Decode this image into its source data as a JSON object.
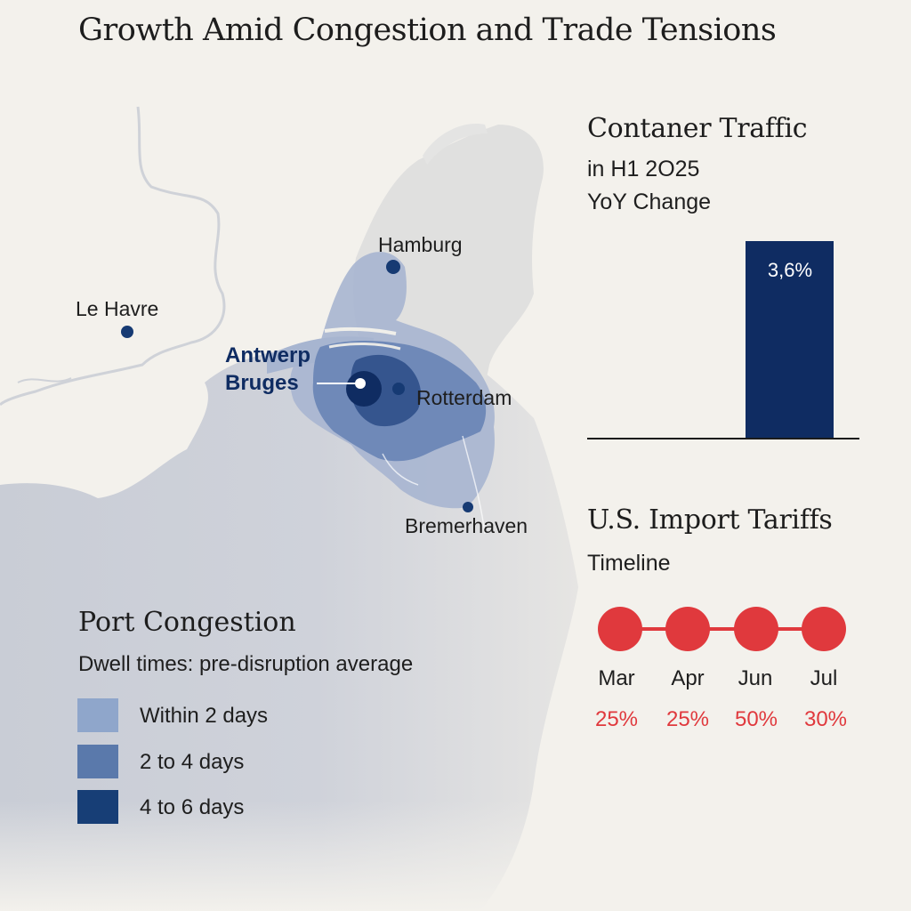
{
  "title": "Growth Amid Congestion and Trade Tensions",
  "cities": {
    "hamburg": "Hamburg",
    "le_havre": "Le Havre",
    "antwerp": "Antwerp",
    "bruges": "Bruges",
    "rotterdam": "Rotterdam",
    "bremerhaven": "Bremerhaven"
  },
  "traffic": {
    "heading": "Contaner Traffic",
    "sub1": "in H1 2O25",
    "sub2": "YoY Change",
    "value": 3.6,
    "value_label": "3,6%",
    "bar_color": "#0f2c62"
  },
  "tariffs": {
    "heading": "U.S. Import Tariffs",
    "sub": "Timeline",
    "dot_color": "#e0393d",
    "items": [
      {
        "month": "Mar",
        "rate": "25%"
      },
      {
        "month": "Apr",
        "rate": "25%"
      },
      {
        "month": "Jun",
        "rate": "50%"
      },
      {
        "month": "Jul",
        "rate": "30%"
      }
    ]
  },
  "legend": {
    "title": "Port Congestion",
    "subtitle": "Dwell times: pre-disruption average",
    "items": [
      {
        "label": "Within 2 days",
        "color": "#8fa6cb"
      },
      {
        "label": "2 to 4 days",
        "color": "#5a79ab"
      },
      {
        "label": "4 to 6 days",
        "color": "#173e76"
      }
    ]
  }
}
